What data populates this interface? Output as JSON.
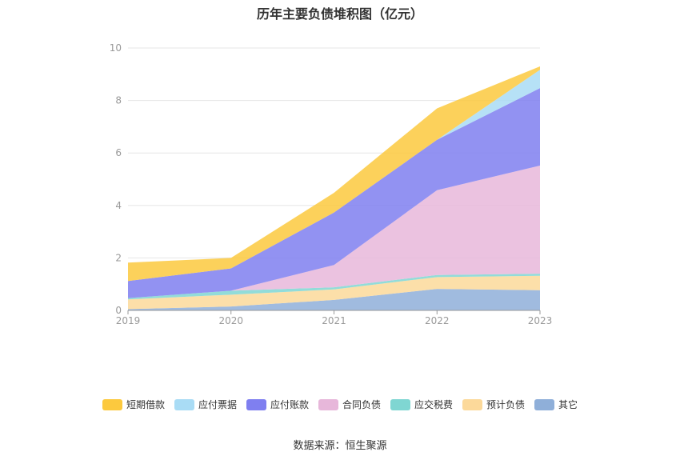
{
  "chart_data": {
    "type": "area",
    "stacked": true,
    "title": "历年主要负债堆积图（亿元）",
    "x": [
      "2019",
      "2020",
      "2021",
      "2022",
      "2023"
    ],
    "ylim": [
      0,
      10
    ],
    "yticks": [
      0,
      2,
      4,
      6,
      8,
      10
    ],
    "grid": true,
    "legend_position": "bottom",
    "series": [
      {
        "name": "其它",
        "color": "#8fafd9",
        "values": [
          0.05,
          0.15,
          0.4,
          0.82,
          0.77
        ]
      },
      {
        "name": "预计负债",
        "color": "#fcd99a",
        "values": [
          0.37,
          0.45,
          0.4,
          0.45,
          0.55
        ]
      },
      {
        "name": "应交税费",
        "color": "#7fd6d2",
        "values": [
          0.05,
          0.15,
          0.08,
          0.08,
          0.08
        ]
      },
      {
        "name": "合同负债",
        "color": "#e7b7da",
        "values": [
          0.0,
          0.0,
          0.85,
          3.23,
          4.12
        ]
      },
      {
        "name": "应付账款",
        "color": "#7f7ff0",
        "values": [
          0.65,
          0.85,
          2.0,
          1.92,
          2.95
        ]
      },
      {
        "name": "应付票据",
        "color": "#a9dcf5",
        "values": [
          0.0,
          0.0,
          0.0,
          0.0,
          0.7
        ]
      },
      {
        "name": "短期借款",
        "color": "#fcc93e",
        "values": [
          0.7,
          0.4,
          0.75,
          1.2,
          0.13
        ]
      }
    ],
    "legend_order": [
      "短期借款",
      "应付票据",
      "应付账款",
      "合同负债",
      "应交税费",
      "预计负债",
      "其它"
    ]
  },
  "source_text": "数据来源：恒生聚源"
}
